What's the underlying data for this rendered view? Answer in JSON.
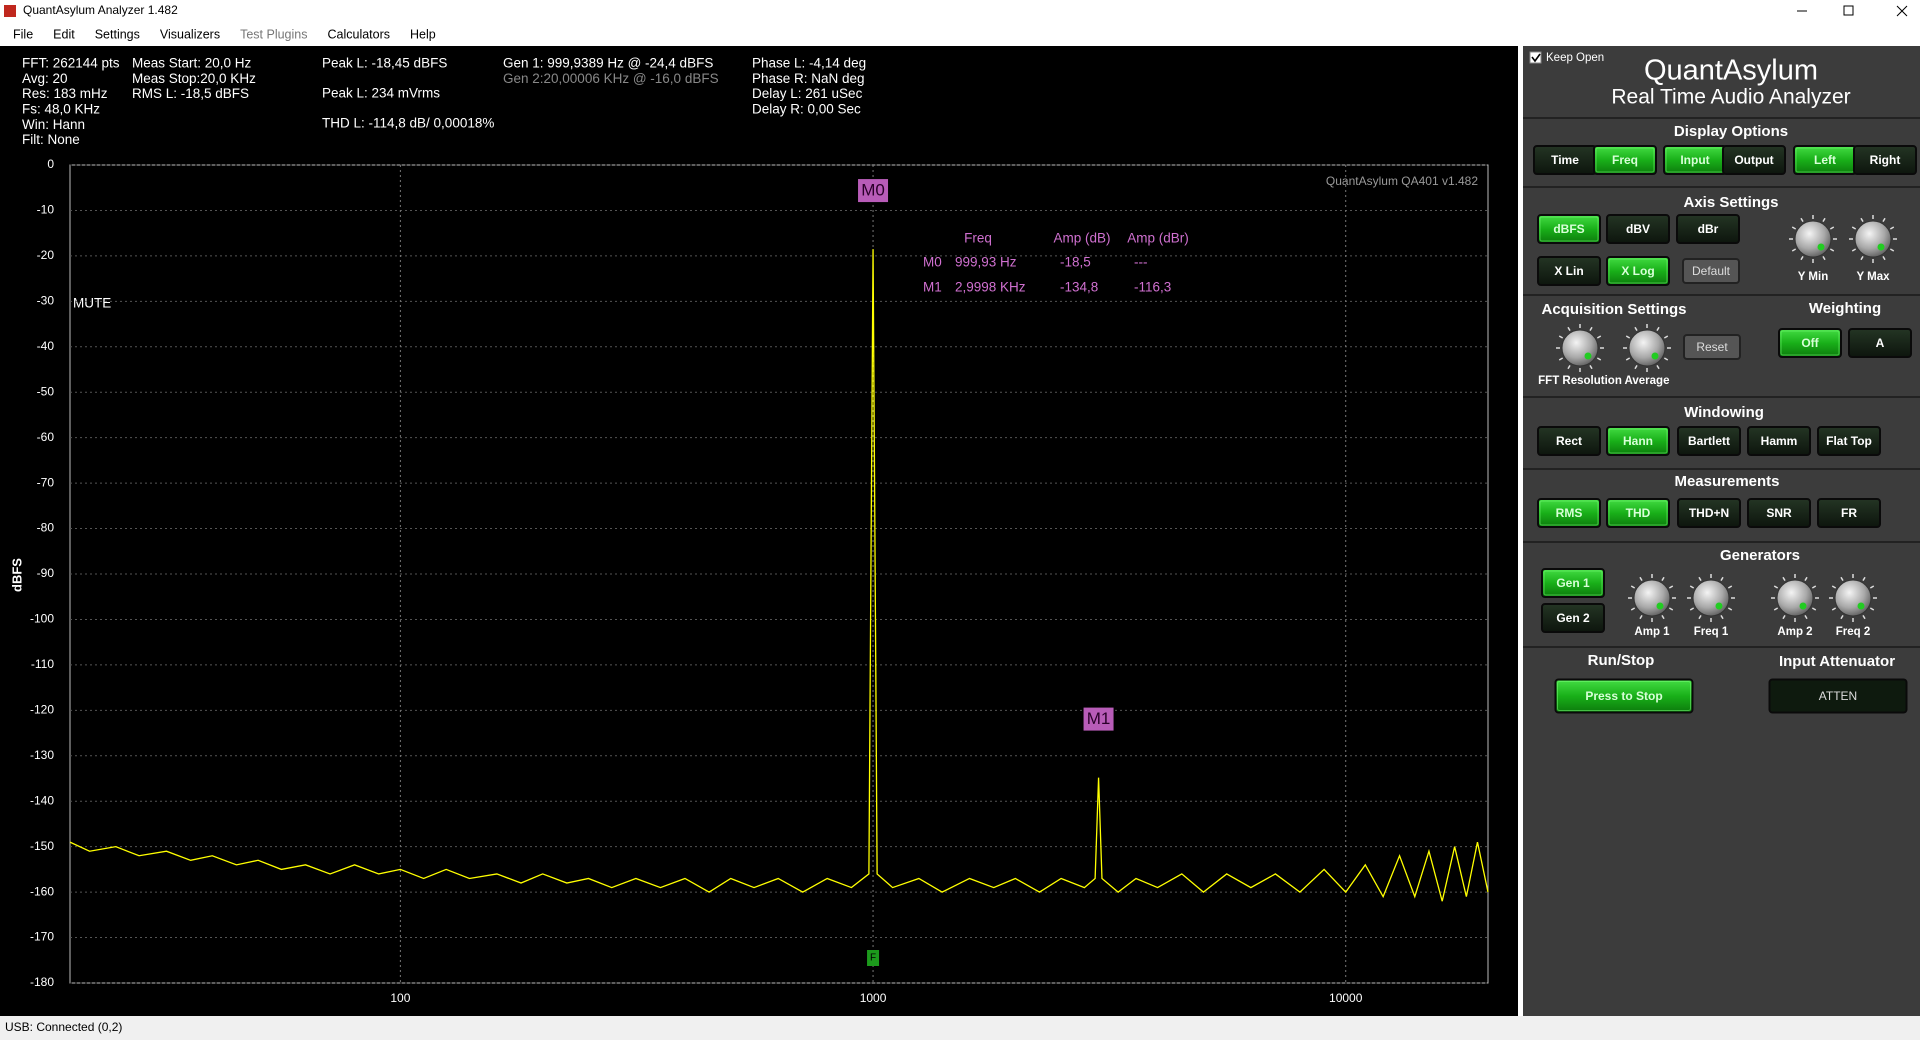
{
  "window": {
    "title": "QuantAsylum Analyzer 1.482",
    "menu": [
      "File",
      "Edit",
      "Settings",
      "Visualizers",
      "Test Plugins",
      "Calculators",
      "Help"
    ],
    "status": "USB: Connected  (0,2)"
  },
  "readouts": [
    [
      "FFT: 262144 pts",
      "Avg: 20",
      "Res: 183 mHz",
      "Fs: 48,0 KHz",
      "Win: Hann",
      "Filt: None"
    ],
    [
      "Meas Start: 20,0 Hz",
      "Meas Stop:20,0 KHz",
      "RMS L: -18,5 dBFS"
    ],
    [
      "Peak L: -18,45 dBFS",
      "Peak L: 234 mVrms",
      "THD L: -114,8 dB/ 0,00018%"
    ],
    [
      "Gen 1: 999,9389 Hz @ -24,4  dBFS",
      "Gen 2:20,00006 KHz @ -16,0  dBFS"
    ],
    [
      "Phase L: -4,14 deg",
      "Phase R: NaN deg",
      "Delay L: 261 uSec",
      "Delay R: 0,00 Sec"
    ]
  ],
  "chart_data": {
    "type": "line",
    "y_label": "dBFS",
    "watermark": "QuantAsylum QA401 v1.482",
    "annotation": "MUTE",
    "log_x": true,
    "grid": true,
    "color": "#ffff00",
    "xlim": [
      20,
      20000
    ],
    "ylim": [
      -180,
      0
    ],
    "xticks": [
      100,
      1000,
      10000
    ],
    "yticks": [
      0,
      -10,
      -20,
      -30,
      -40,
      -50,
      -60,
      -70,
      -80,
      -90,
      -100,
      -110,
      -120,
      -130,
      -140,
      -150,
      -160,
      -170,
      -180
    ],
    "x": [
      20,
      22,
      25,
      28,
      32,
      36,
      40,
      45,
      50,
      56,
      63,
      71,
      80,
      90,
      100,
      112,
      125,
      140,
      160,
      180,
      200,
      225,
      250,
      280,
      315,
      355,
      400,
      450,
      500,
      560,
      630,
      710,
      800,
      900,
      980,
      1000,
      1020,
      1100,
      1250,
      1400,
      1600,
      1800,
      2000,
      2250,
      2500,
      2800,
      2950,
      3000,
      3050,
      3300,
      3600,
      4000,
      4500,
      5000,
      5600,
      6300,
      7100,
      8000,
      9000,
      10000,
      11000,
      12000,
      13000,
      14000,
      15000,
      16000,
      17000,
      18000,
      19000,
      20000
    ],
    "values": [
      -149,
      -151,
      -150,
      -152,
      -151,
      -153,
      -152,
      -154,
      -153,
      -155,
      -154,
      -156,
      -154,
      -156,
      -155,
      -157,
      -155,
      -157,
      -156,
      -158,
      -156,
      -158,
      -157,
      -159,
      -157,
      -159,
      -157,
      -160,
      -157,
      -159,
      -157,
      -160,
      -157,
      -159,
      -156,
      -18.5,
      -156,
      -159,
      -157,
      -160,
      -157,
      -159,
      -157,
      -160,
      -157,
      -159,
      -157,
      -134.8,
      -157,
      -160,
      -157,
      -159,
      -156,
      -160,
      -156,
      -159,
      -156,
      -160,
      -155,
      -160,
      -154,
      -161,
      -152,
      -161,
      -151,
      -162,
      -150,
      -161,
      -149,
      -160
    ],
    "markers": [
      {
        "label": "M0",
        "x": 999.93,
        "y": -18.5
      },
      {
        "label": "M1",
        "x": 2999.8,
        "y": -134.8
      }
    ],
    "marker_table": {
      "headers": [
        "Freq",
        "Amp (dB)",
        "Amp (dBr)"
      ],
      "rows": [
        [
          "M0",
          "999,93 Hz",
          "-18,5",
          "---"
        ],
        [
          "M1",
          "2,9998 KHz",
          "-134,8",
          "-116,3"
        ]
      ]
    },
    "filter_marker": {
      "label": "F",
      "x": 1000
    }
  },
  "panel": {
    "keep_open": "Keep Open",
    "title": "QuantAsylum",
    "subtitle": "Real Time Audio Analyzer",
    "sections": [
      {
        "title": "Display Options",
        "buttons": [
          {
            "label": "Time",
            "on": false
          },
          {
            "label": "Freq",
            "on": true
          },
          {
            "label": "Input",
            "on": true
          },
          {
            "label": "Output",
            "on": false
          },
          {
            "label": "Left",
            "on": true
          },
          {
            "label": "Right",
            "on": false
          }
        ],
        "knobs": []
      },
      {
        "title": "Axis Settings",
        "buttons": [
          {
            "label": "dBFS",
            "on": true
          },
          {
            "label": "dBV",
            "on": false
          },
          {
            "label": "dBr",
            "on": false
          },
          {
            "label": "X Lin",
            "on": false
          },
          {
            "label": "X Log",
            "on": true
          },
          {
            "label": "Default",
            "on": false
          }
        ],
        "knobs": [
          "Y Min",
          "Y Max"
        ]
      },
      {
        "title": "Acquisition Settings",
        "buttons": [
          {
            "label": "Reset",
            "on": false
          }
        ],
        "knobs": [
          "FFT Resolution",
          "Average"
        ]
      },
      {
        "title": "Weighting",
        "buttons": [
          {
            "label": "Off",
            "on": true
          },
          {
            "label": "A",
            "on": false
          }
        ],
        "knobs": []
      },
      {
        "title": "Windowing",
        "buttons": [
          {
            "label": "Rect",
            "on": false
          },
          {
            "label": "Hann",
            "on": true
          },
          {
            "label": "Bartlett",
            "on": false
          },
          {
            "label": "Hamm",
            "on": false
          },
          {
            "label": "Flat Top",
            "on": false
          }
        ],
        "knobs": []
      },
      {
        "title": "Measurements",
        "buttons": [
          {
            "label": "RMS",
            "on": true
          },
          {
            "label": "THD",
            "on": true
          },
          {
            "label": "THD+N",
            "on": false
          },
          {
            "label": "SNR",
            "on": false
          },
          {
            "label": "FR",
            "on": false
          }
        ],
        "knobs": []
      },
      {
        "title": "Generators",
        "buttons": [
          {
            "label": "Gen 1",
            "on": true
          },
          {
            "label": "Gen 2",
            "on": false
          }
        ],
        "knobs": [
          "Amp 1",
          "Freq 1",
          "Amp 2",
          "Freq 2"
        ]
      },
      {
        "title": "Run/Stop",
        "buttons": [
          {
            "label": "Press to Stop",
            "on": true
          }
        ],
        "knobs": []
      },
      {
        "title": "Input Attenuator",
        "buttons": [
          {
            "label": "ATTEN",
            "on": false
          }
        ],
        "knobs": []
      }
    ]
  }
}
